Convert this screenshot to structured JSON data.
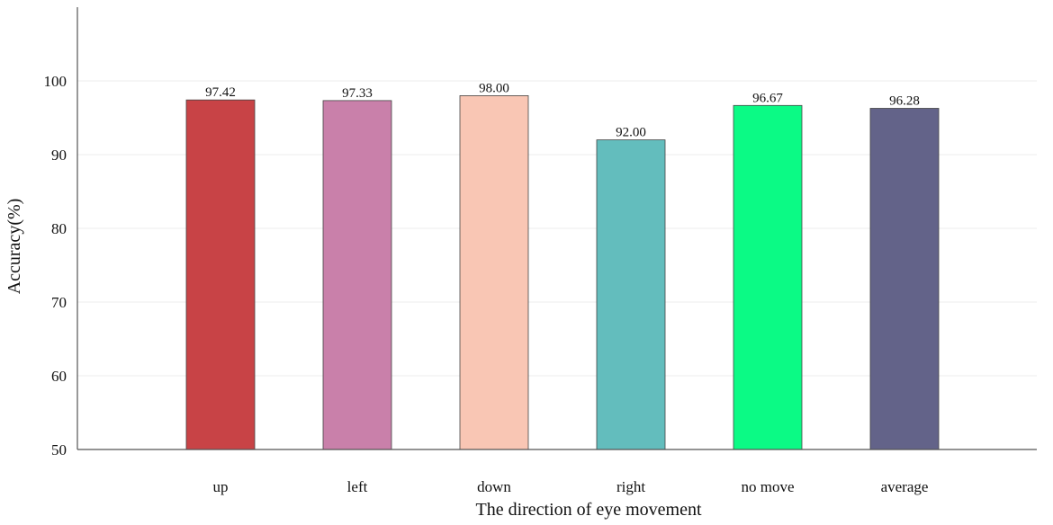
{
  "chart_data": {
    "type": "bar",
    "categories": [
      "up",
      "left",
      "down",
      "right",
      "no move",
      "average"
    ],
    "values": [
      97.42,
      97.33,
      98.0,
      92.0,
      96.67,
      96.28
    ],
    "data_labels": [
      "97.42",
      "97.33",
      "98.00",
      "92.00",
      "96.67",
      "96.28"
    ],
    "colors": [
      "#c84346",
      "#c980aa",
      "#f9c6b4",
      "#63bdbd",
      "#0bfa85",
      "#636389"
    ],
    "xlabel": "The direction of eye movement",
    "ylabel": "Accuracy(%)",
    "ylim": [
      50,
      110
    ],
    "yticks": [
      50,
      60,
      70,
      80,
      90,
      100
    ],
    "grid": true
  }
}
